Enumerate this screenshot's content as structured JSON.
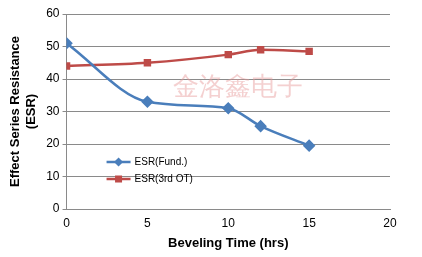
{
  "chart_data": {
    "type": "line",
    "x_label": "Beveling Time (hrs)",
    "y_label": "Effect Series Resistance\n(ESR)",
    "annotations": [
      "金洛鑫电子"
    ],
    "x": [
      0,
      5,
      10,
      12,
      15
    ],
    "series": [
      {
        "name": "ESR(Fund.)",
        "color": "#4a7ebb",
        "marker": "diamond",
        "line_style": "solid",
        "values": [
          51,
          33,
          31,
          25.5,
          19.5
        ]
      },
      {
        "name": "ESR(3rd OT)",
        "color": "#be4b48",
        "marker": "square",
        "line_style": "solid",
        "values": [
          44,
          45,
          47.5,
          49,
          48.5
        ]
      }
    ],
    "xlim": [
      0,
      20
    ],
    "xticks": [
      0,
      5,
      10,
      15,
      20
    ],
    "ylim": [
      0,
      60
    ],
    "yticks": [
      0,
      10,
      20,
      30,
      40,
      50,
      60
    ],
    "grid": "y",
    "legend": "lower left"
  }
}
